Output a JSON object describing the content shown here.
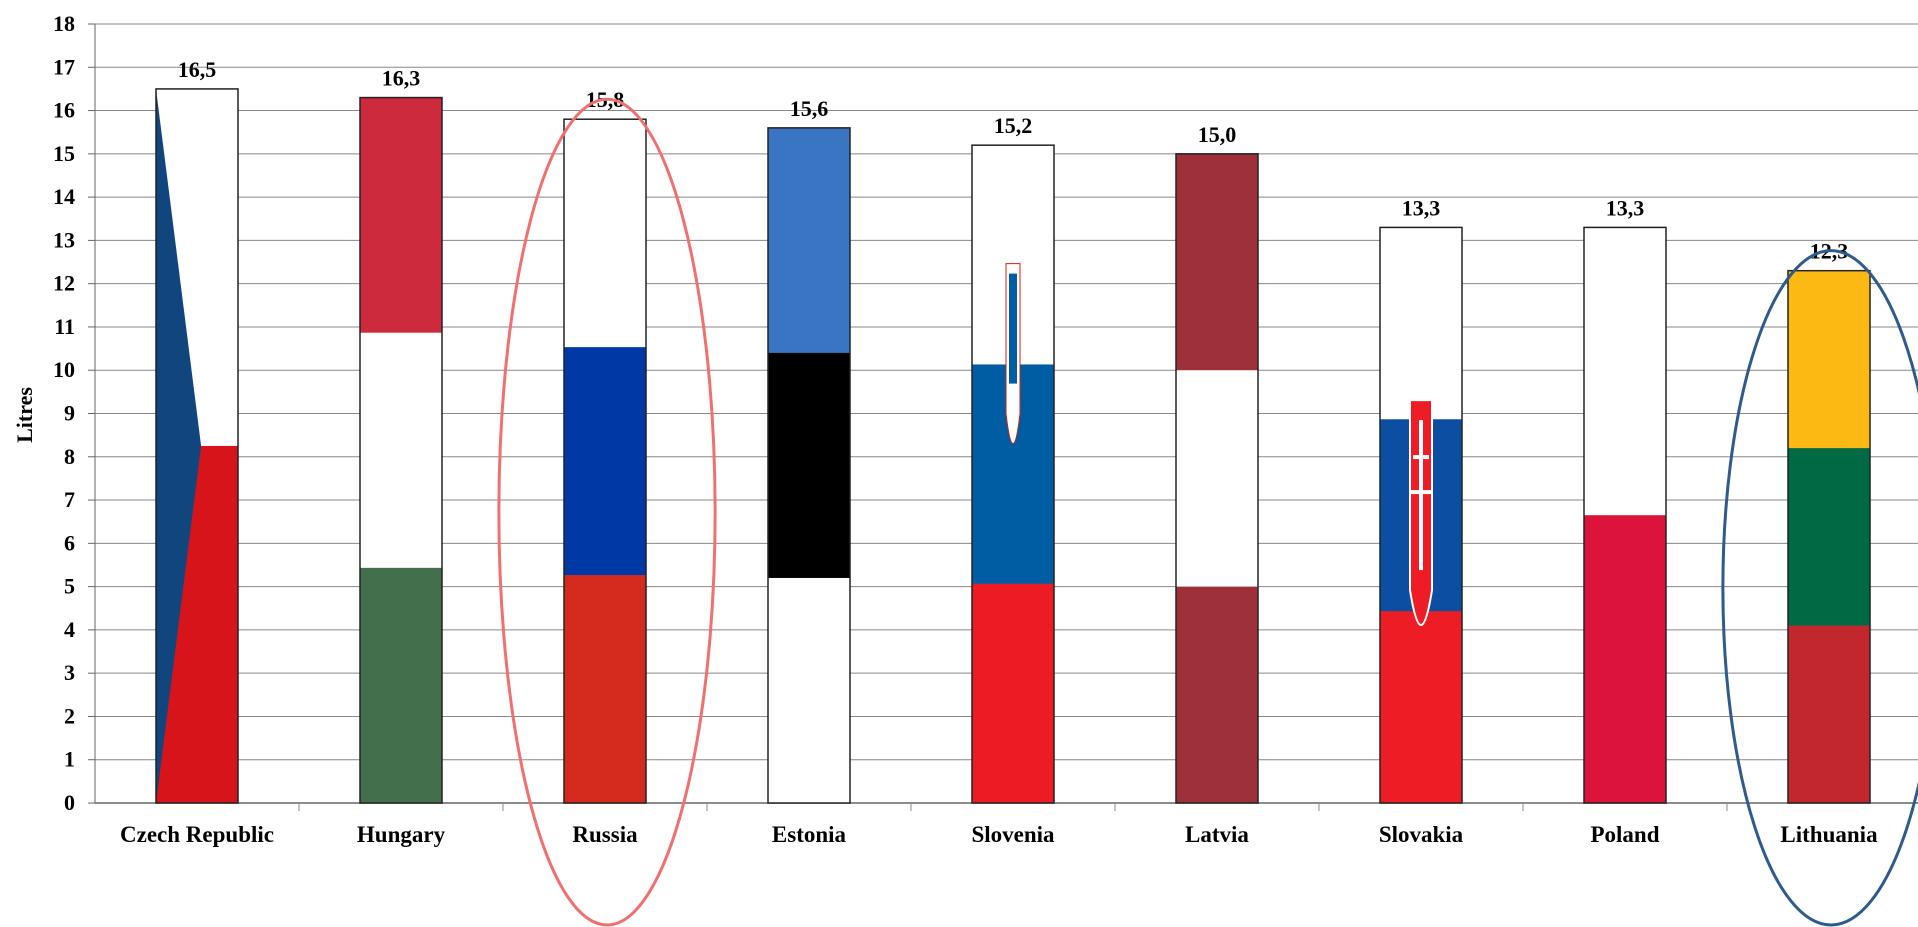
{
  "chart_data": {
    "type": "bar",
    "title": "",
    "xlabel": "",
    "ylabel": "Litres",
    "ylim": [
      0,
      18
    ],
    "ytick_step": 1,
    "grid": true,
    "categories": [
      "Czech Republic",
      "Hungary",
      "Russia",
      "Estonia",
      "Slovenia",
      "Latvia",
      "Slovakia",
      "Poland",
      "Lithuania"
    ],
    "values": [
      16.5,
      16.3,
      15.8,
      15.6,
      15.2,
      15.0,
      13.3,
      13.3,
      12.3
    ],
    "value_labels": [
      "16,5",
      "16,3",
      "15,8",
      "15,6",
      "15,2",
      "15,0",
      "13,3",
      "13,3",
      "12,3"
    ],
    "bar_fill": "flag-of-country",
    "flag_colors": {
      "Czech Republic": [
        "#ffffff",
        "#d7141a",
        "#11457e"
      ],
      "Hungary": [
        "#cd2a3e",
        "#ffffff",
        "#436f4d"
      ],
      "Russia": [
        "#ffffff",
        "#0039a6",
        "#d52b1e"
      ],
      "Estonia": [
        "#3a75c4",
        "#000000",
        "#ffffff"
      ],
      "Slovenia": [
        "#ffffff",
        "#005da4",
        "#ed1c24"
      ],
      "Latvia": [
        "#9e3039",
        "#ffffff",
        "#9e3039"
      ],
      "Slovakia": [
        "#ffffff",
        "#0b4ea2",
        "#ee1c25"
      ],
      "Poland": [
        "#ffffff",
        "#dc143c"
      ],
      "Lithuania": [
        "#fdb913",
        "#006a44",
        "#c1272d"
      ]
    },
    "highlights": [
      {
        "category": "Russia",
        "shape": "ellipse",
        "color": "#f07070"
      },
      {
        "category": "Lithuania",
        "shape": "ellipse",
        "color": "#2e5a8c"
      }
    ]
  }
}
